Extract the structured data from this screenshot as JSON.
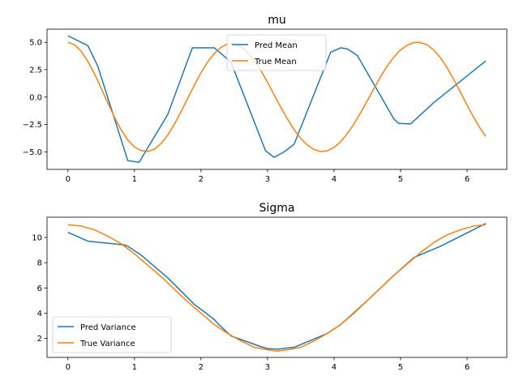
{
  "chart_data": [
    {
      "type": "line",
      "title": "mu",
      "xlabel": "",
      "ylabel": "",
      "xlim": [
        -0.314,
        6.597
      ],
      "ylim": [
        -6.6,
        6.2
      ],
      "x_ticks": [
        0,
        1,
        2,
        3,
        4,
        5,
        6
      ],
      "y_ticks": [
        -5.0,
        -2.5,
        0.0,
        2.5,
        5.0
      ],
      "x_tick_labels": [
        "0",
        "1",
        "2",
        "3",
        "4",
        "5",
        "6"
      ],
      "y_tick_labels": [
        "−5.0",
        "−2.5",
        "0.0",
        "2.5",
        "5.0"
      ],
      "grid": false,
      "legend_position": "upper-center",
      "series": [
        {
          "name": "Pred Mean",
          "color": "#1f77b4",
          "x": [
            0,
            0.3,
            0.45,
            0.9,
            1.07,
            1.5,
            1.87,
            2.2,
            2.45,
            2.97,
            3.1,
            3.25,
            3.4,
            3.95,
            4.1,
            4.2,
            4.35,
            4.9,
            4.97,
            5.15,
            5.5,
            6.28
          ],
          "y": [
            5.6,
            4.7,
            2.8,
            -5.8,
            -5.95,
            -1.6,
            4.5,
            4.5,
            3.2,
            -4.9,
            -5.5,
            -5.0,
            -4.3,
            4.1,
            4.5,
            4.4,
            3.8,
            -2.0,
            -2.4,
            -2.45,
            -0.5,
            3.3
          ]
        },
        {
          "name": "True Mean",
          "color": "#ff7f0e",
          "x": [
            0,
            0.1,
            0.2,
            0.3,
            0.4,
            0.5,
            0.6,
            0.7,
            0.8,
            0.9,
            1.0,
            1.05,
            1.1,
            1.2,
            1.3,
            1.4,
            1.5,
            1.6,
            1.7,
            1.8,
            1.9,
            2.0,
            2.1,
            2.2,
            2.3,
            2.4,
            2.5,
            2.6,
            2.7,
            2.8,
            2.9,
            3.0,
            3.1,
            3.15,
            3.2,
            3.3,
            3.4,
            3.5,
            3.6,
            3.7,
            3.8,
            3.9,
            4.0,
            4.1,
            4.2,
            4.3,
            4.4,
            4.5,
            4.6,
            4.7,
            4.8,
            4.9,
            5.0,
            5.1,
            5.2,
            5.25,
            5.3,
            5.4,
            5.5,
            5.6,
            5.7,
            5.8,
            5.9,
            6.0,
            6.1,
            6.2,
            6.28
          ],
          "y": [
            5.0,
            4.78,
            4.18,
            3.26,
            2.11,
            0.81,
            -0.54,
            -1.84,
            -3.0,
            -3.92,
            -4.55,
            -4.74,
            -4.88,
            -4.97,
            -4.76,
            -4.24,
            -3.47,
            -2.48,
            -1.34,
            -0.13,
            1.09,
            2.22,
            3.21,
            3.99,
            4.54,
            4.84,
            4.85,
            4.6,
            4.09,
            3.35,
            2.42,
            1.35,
            0.21,
            -0.37,
            -0.93,
            -2.01,
            -2.97,
            -3.78,
            -4.39,
            -4.79,
            -4.97,
            -4.9,
            -4.6,
            -4.07,
            -3.34,
            -2.45,
            -1.43,
            -0.34,
            0.78,
            1.86,
            2.84,
            3.66,
            4.31,
            4.73,
            4.98,
            5.0,
            4.98,
            4.76,
            4.29,
            3.58,
            2.67,
            1.6,
            0.44,
            -0.74,
            -1.87,
            -2.89,
            -3.6
          ]
        }
      ]
    },
    {
      "type": "line",
      "title": "Sigma",
      "xlabel": "",
      "ylabel": "",
      "xlim": [
        -0.314,
        6.597
      ],
      "ylim": [
        0.5,
        11.6
      ],
      "x_ticks": [
        0,
        1,
        2,
        3,
        4,
        5,
        6
      ],
      "y_ticks": [
        2,
        4,
        6,
        8,
        10
      ],
      "x_tick_labels": [
        "0",
        "1",
        "2",
        "3",
        "4",
        "5",
        "6"
      ],
      "y_tick_labels": [
        "2",
        "4",
        "6",
        "8",
        "10"
      ],
      "grid": false,
      "legend_position": "lower-left",
      "series": [
        {
          "name": "Pred Variance",
          "color": "#1f77b4",
          "x": [
            0,
            0.3,
            0.85,
            0.9,
            1.1,
            1.5,
            1.9,
            2.2,
            2.25,
            2.45,
            2.9,
            3.0,
            3.15,
            3.4,
            3.9,
            4.1,
            4.5,
            4.9,
            5.2,
            5.6,
            6.28
          ],
          "y": [
            10.4,
            9.7,
            9.4,
            9.3,
            8.6,
            6.8,
            4.7,
            3.5,
            3.2,
            2.2,
            1.35,
            1.2,
            1.15,
            1.3,
            2.4,
            3.1,
            5.0,
            7.0,
            8.4,
            9.3,
            11.1
          ]
        },
        {
          "name": "True Variance",
          "color": "#ff7f0e",
          "x": [
            0,
            0.2,
            0.4,
            0.6,
            0.8,
            1.0,
            1.2,
            1.4,
            1.6,
            1.8,
            2.0,
            2.2,
            2.4,
            2.6,
            2.8,
            3.0,
            3.14,
            3.3,
            3.5,
            3.7,
            3.9,
            4.1,
            4.3,
            4.5,
            4.7,
            4.9,
            5.1,
            5.3,
            5.5,
            5.7,
            5.9,
            6.1,
            6.28
          ],
          "y": [
            11.0,
            10.9,
            10.6,
            10.1,
            9.5,
            8.7,
            7.8,
            6.9,
            5.9,
            4.9,
            4.0,
            3.1,
            2.4,
            1.8,
            1.3,
            1.1,
            1.0,
            1.1,
            1.3,
            1.8,
            2.4,
            3.1,
            4.0,
            5.0,
            6.0,
            7.0,
            7.9,
            8.8,
            9.6,
            10.2,
            10.6,
            10.9,
            11.0
          ]
        }
      ]
    }
  ]
}
